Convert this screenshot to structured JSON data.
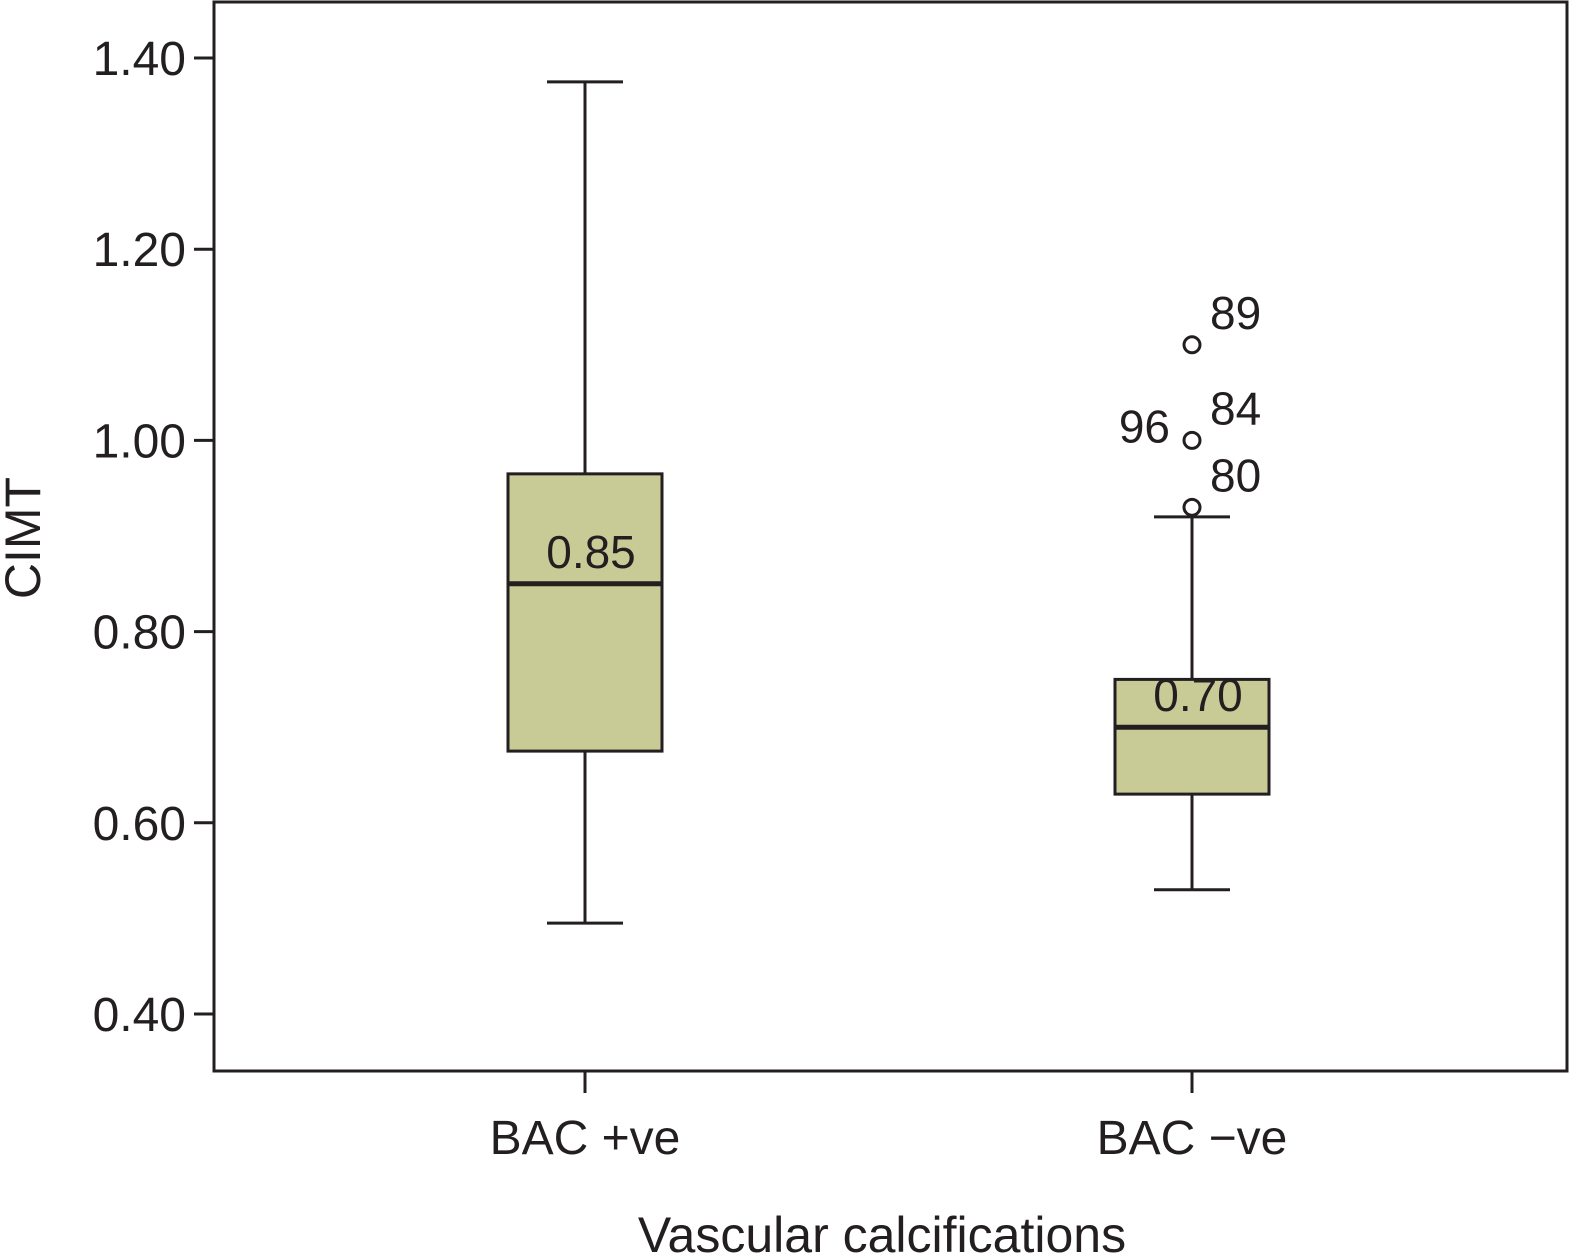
{
  "chart_data": {
    "type": "boxplot",
    "title": "",
    "xlabel": "Vascular calcifications",
    "ylabel": "CIMT",
    "ylim": [
      0.34,
      1.46
    ],
    "yticks": [
      0.4,
      0.6,
      0.8,
      1.0,
      1.2,
      1.4
    ],
    "ytick_labels": [
      "0.40",
      "0.60",
      "0.80",
      "1.00",
      "1.20",
      "1.40"
    ],
    "categories": [
      "BAC +ve",
      "BAC −ve"
    ],
    "box_color": "#c8cb96",
    "line_color": "#231f20",
    "grid": false,
    "boxes": [
      {
        "category": "BAC +ve",
        "min": 0.495,
        "q1": 0.675,
        "median": 0.85,
        "q3": 0.965,
        "max": 1.375,
        "median_label": "0.85",
        "outliers": []
      },
      {
        "category": "BAC −ve",
        "min": 0.53,
        "q1": 0.63,
        "median": 0.7,
        "q3": 0.75,
        "max": 0.92,
        "median_label": "0.70",
        "outliers": [
          {
            "value": 1.1,
            "labels": [
              "89"
            ]
          },
          {
            "value": 1.0,
            "labels": [
              "96",
              "84"
            ]
          },
          {
            "value": 0.93,
            "labels": [
              "80"
            ]
          }
        ]
      }
    ]
  }
}
